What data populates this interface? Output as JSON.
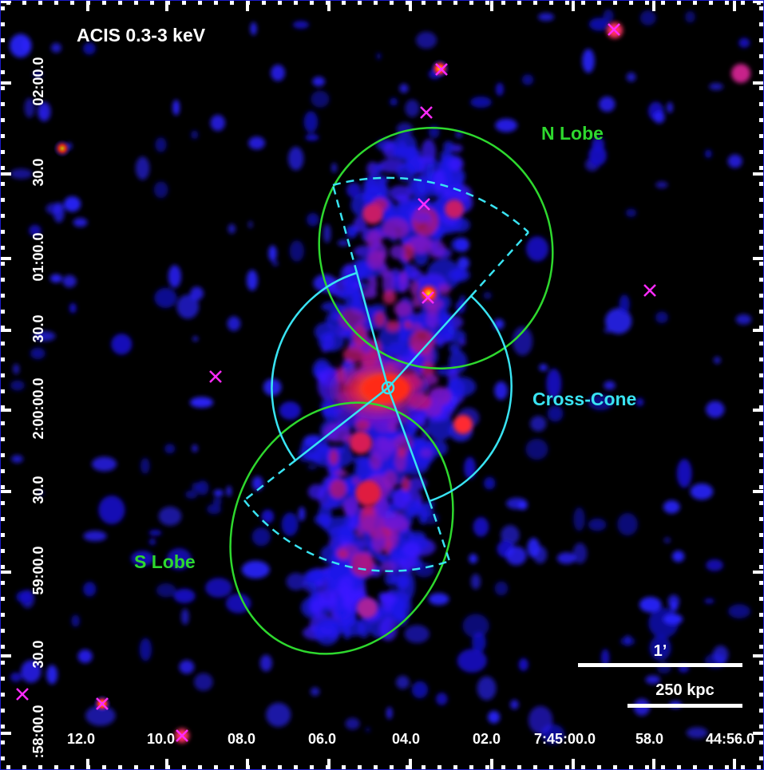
{
  "panel_label": "ACIS 0.3-3 keV",
  "regions": {
    "n_lobe": {
      "label": "N Lobe",
      "color": "#2ed82e"
    },
    "s_lobe": {
      "label": "S Lobe",
      "color": "#2ed82e"
    },
    "cross_cone": {
      "label": "Cross-Cone",
      "color": "#39e3f2"
    }
  },
  "point_source_marker_color": "#ff2bff",
  "scale_bars": {
    "angular_label": "1’",
    "physical_label": "250 kpc",
    "color": "#ffffff"
  },
  "axes": {
    "ra_ticks": [
      "12.0",
      "10.0",
      "08.0",
      "06.0",
      "04.0",
      "02.0",
      "7:45:00.0",
      "58.0",
      "44:56.0"
    ],
    "dec_ticks": [
      "02:00.0",
      "30.0",
      "01:00.0",
      "30.0",
      "2:00:00.0",
      "30.0",
      "59:00.0",
      "30.0",
      ":58:00.0"
    ]
  },
  "colormap": [
    "#000000",
    "#0a1aff",
    "#ff2020",
    "#ffcc00"
  ]
}
